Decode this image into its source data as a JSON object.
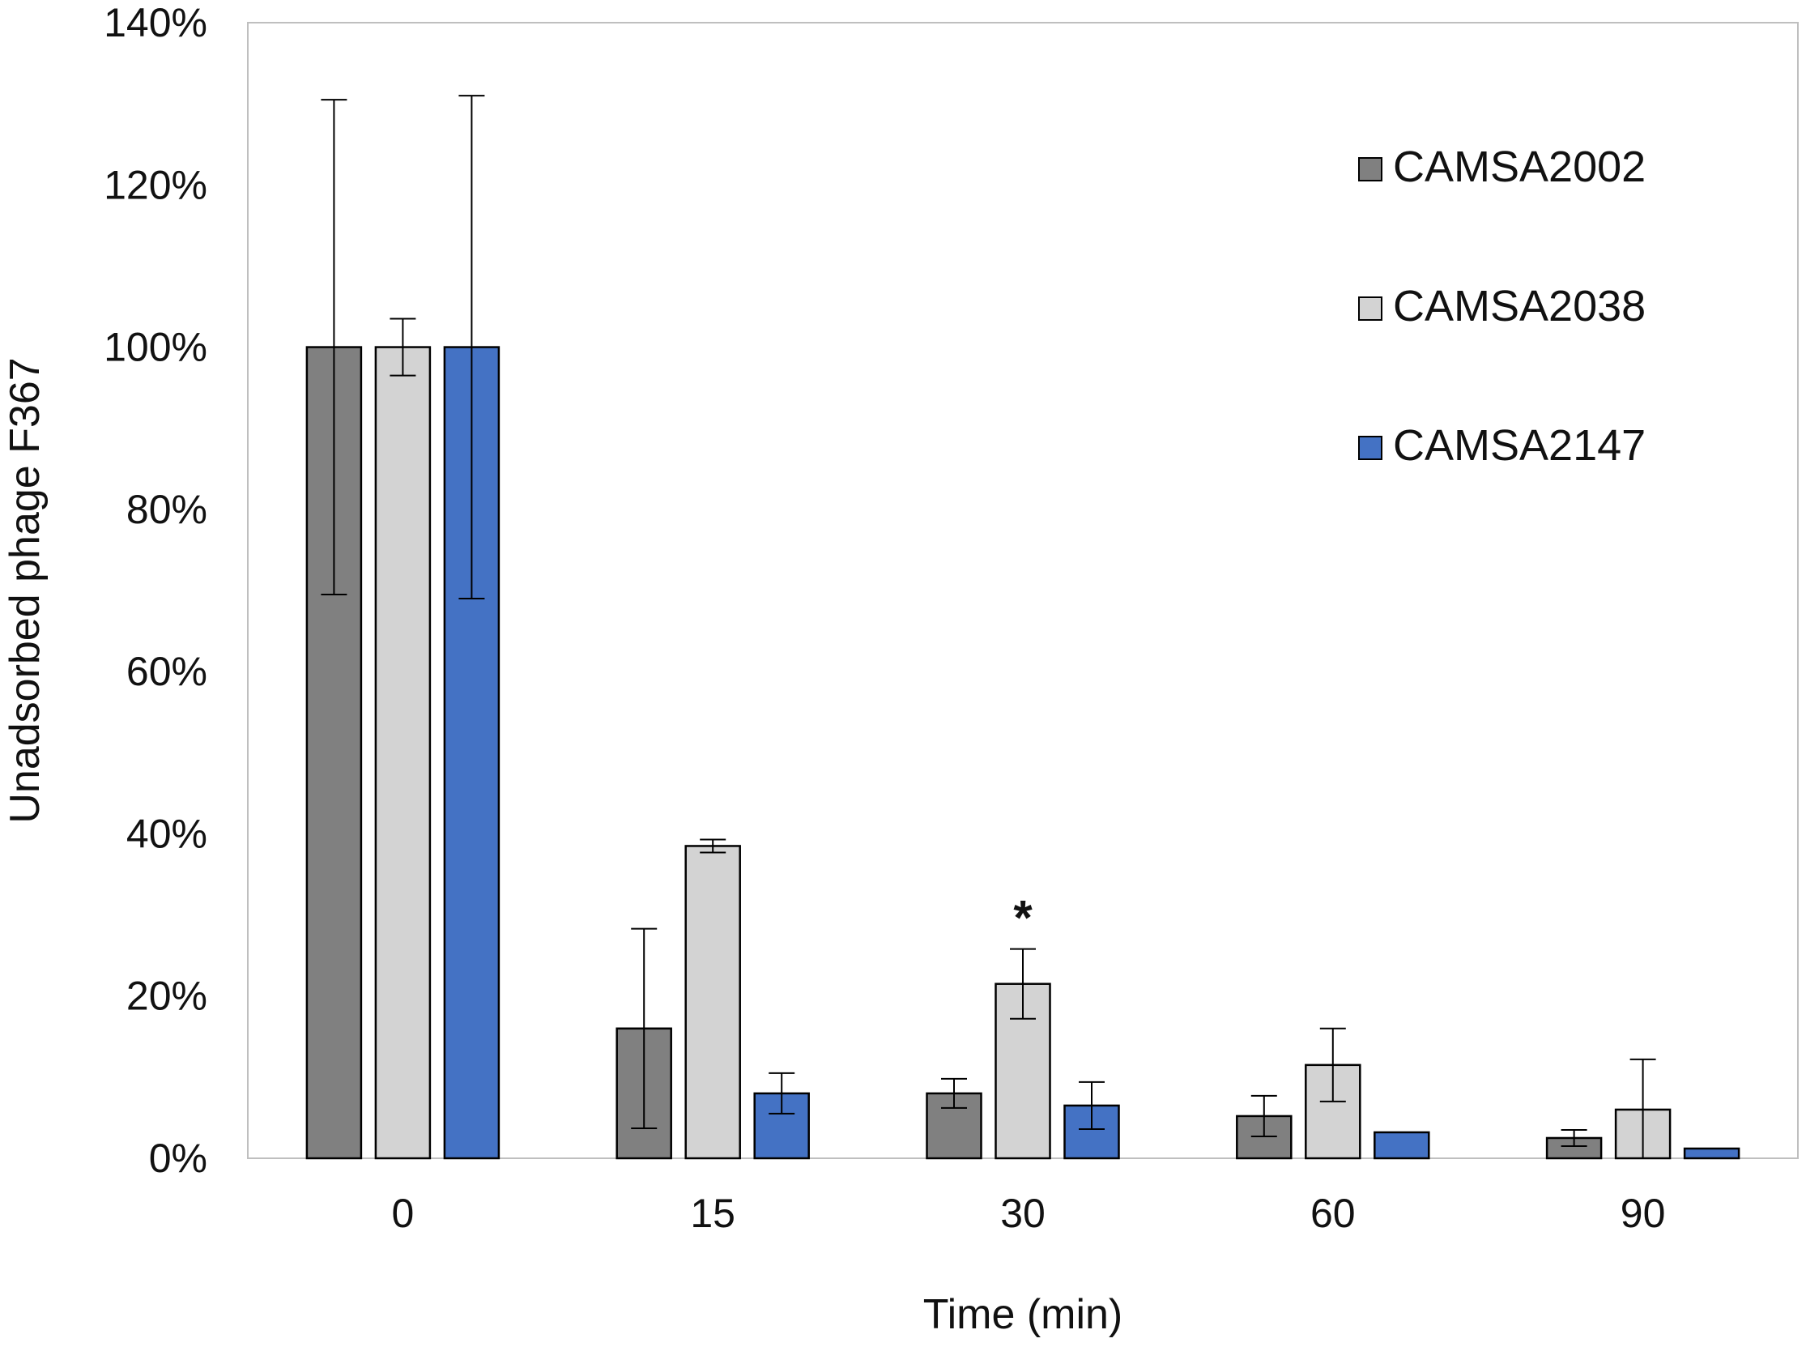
{
  "chart_data": {
    "type": "bar",
    "title": "",
    "xlabel": "Time (min)",
    "ylabel": "Unadsorbed phage F367",
    "ylim": [
      0,
      140
    ],
    "yticks": [
      "0%",
      "20%",
      "40%",
      "60%",
      "80%",
      "100%",
      "120%",
      "140%"
    ],
    "categories": [
      "0",
      "15",
      "30",
      "60",
      "90"
    ],
    "legend_position": "top-right",
    "series": [
      {
        "name": "CAMSA2002",
        "color": "#808080",
        "values": [
          100,
          16,
          8,
          5.2,
          2.5
        ],
        "errors": [
          30.5,
          12.3,
          1.8,
          2.5,
          1.0
        ]
      },
      {
        "name": "CAMSA2038",
        "color": "#d3d3d3",
        "values": [
          100,
          38.5,
          21.5,
          11.5,
          6.0
        ],
        "errors": [
          3.5,
          0.8,
          4.3,
          4.5,
          6.2
        ]
      },
      {
        "name": "CAMSA2147",
        "color": "#4472c4",
        "values": [
          100,
          8.0,
          6.5,
          3.2,
          1.2
        ],
        "errors": [
          31,
          2.5,
          2.9,
          0,
          0
        ]
      }
    ],
    "annotations": [
      {
        "text": "*",
        "category": "30",
        "series": "CAMSA2038"
      }
    ]
  }
}
